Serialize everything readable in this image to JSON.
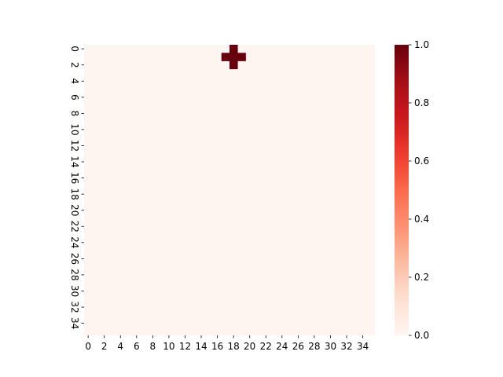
{
  "chart_data": {
    "type": "heatmap",
    "colormap": "Reds",
    "colormap_low": "#fff5f0",
    "colormap_high": "#67000d",
    "rows": 36,
    "cols": 36,
    "x_tick_labels": [
      "0",
      "2",
      "4",
      "6",
      "8",
      "10",
      "12",
      "14",
      "16",
      "18",
      "20",
      "22",
      "24",
      "26",
      "28",
      "30",
      "32",
      "34"
    ],
    "y_tick_labels": [
      "0",
      "2",
      "4",
      "6",
      "8",
      "10",
      "12",
      "14",
      "16",
      "18",
      "20",
      "22",
      "24",
      "26",
      "28",
      "30",
      "32",
      "34"
    ],
    "background_value": 0.0,
    "nonzero_cells": [
      {
        "row": 0,
        "col": 18,
        "value": 1.0
      },
      {
        "row": 1,
        "col": 17,
        "value": 1.0
      },
      {
        "row": 1,
        "col": 18,
        "value": 1.0
      },
      {
        "row": 1,
        "col": 19,
        "value": 1.0
      },
      {
        "row": 2,
        "col": 18,
        "value": 1.0
      }
    ],
    "colorbar": {
      "vmin": 0.0,
      "vmax": 1.0,
      "ticks": [
        "0.0",
        "0.2",
        "0.4",
        "0.6",
        "0.8",
        "1.0"
      ]
    },
    "grid": false,
    "title": "",
    "xlabel": "",
    "ylabel": ""
  }
}
